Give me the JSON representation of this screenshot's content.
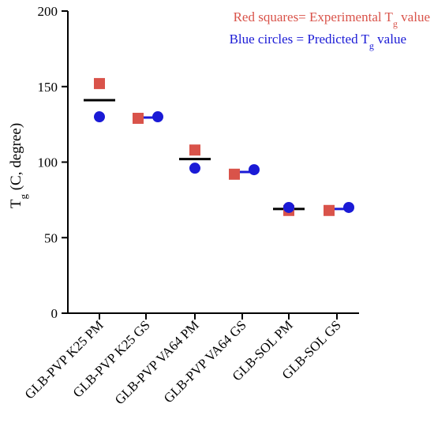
{
  "chart_data": {
    "type": "scatter",
    "title": "",
    "ylabel": {
      "main": "T",
      "sub": "g",
      "rest": " (C, degree)"
    },
    "ylim": [
      0,
      200
    ],
    "yticks": [
      0,
      50,
      100,
      150,
      200
    ],
    "grid": false,
    "legend_position": "top-right",
    "categories": [
      "GLB-PVP K25 PM",
      "GLB-PVP K25 GS",
      "GLB-PVP VA64 PM",
      "GLB-PVP VA64 GS",
      "GLB-SOL PM",
      "GLB-SOL GS"
    ],
    "series": [
      {
        "marker": "square",
        "color": "#d9534a",
        "legend": {
          "pre": "Red squares= Experimental T",
          "sub": "g",
          "post": " value"
        },
        "values": [
          152,
          129,
          108,
          92,
          68,
          68
        ]
      },
      {
        "marker": "circle",
        "color": "#1a1ad6",
        "legend": {
          "pre": "Blue circles = Predicted T",
          "sub": "g",
          "post": " value"
        },
        "values": [
          130,
          130,
          96,
          95,
          70,
          70
        ]
      }
    ],
    "mean_lines": [
      141,
      129.5,
      102,
      93.5,
      69,
      69
    ]
  }
}
